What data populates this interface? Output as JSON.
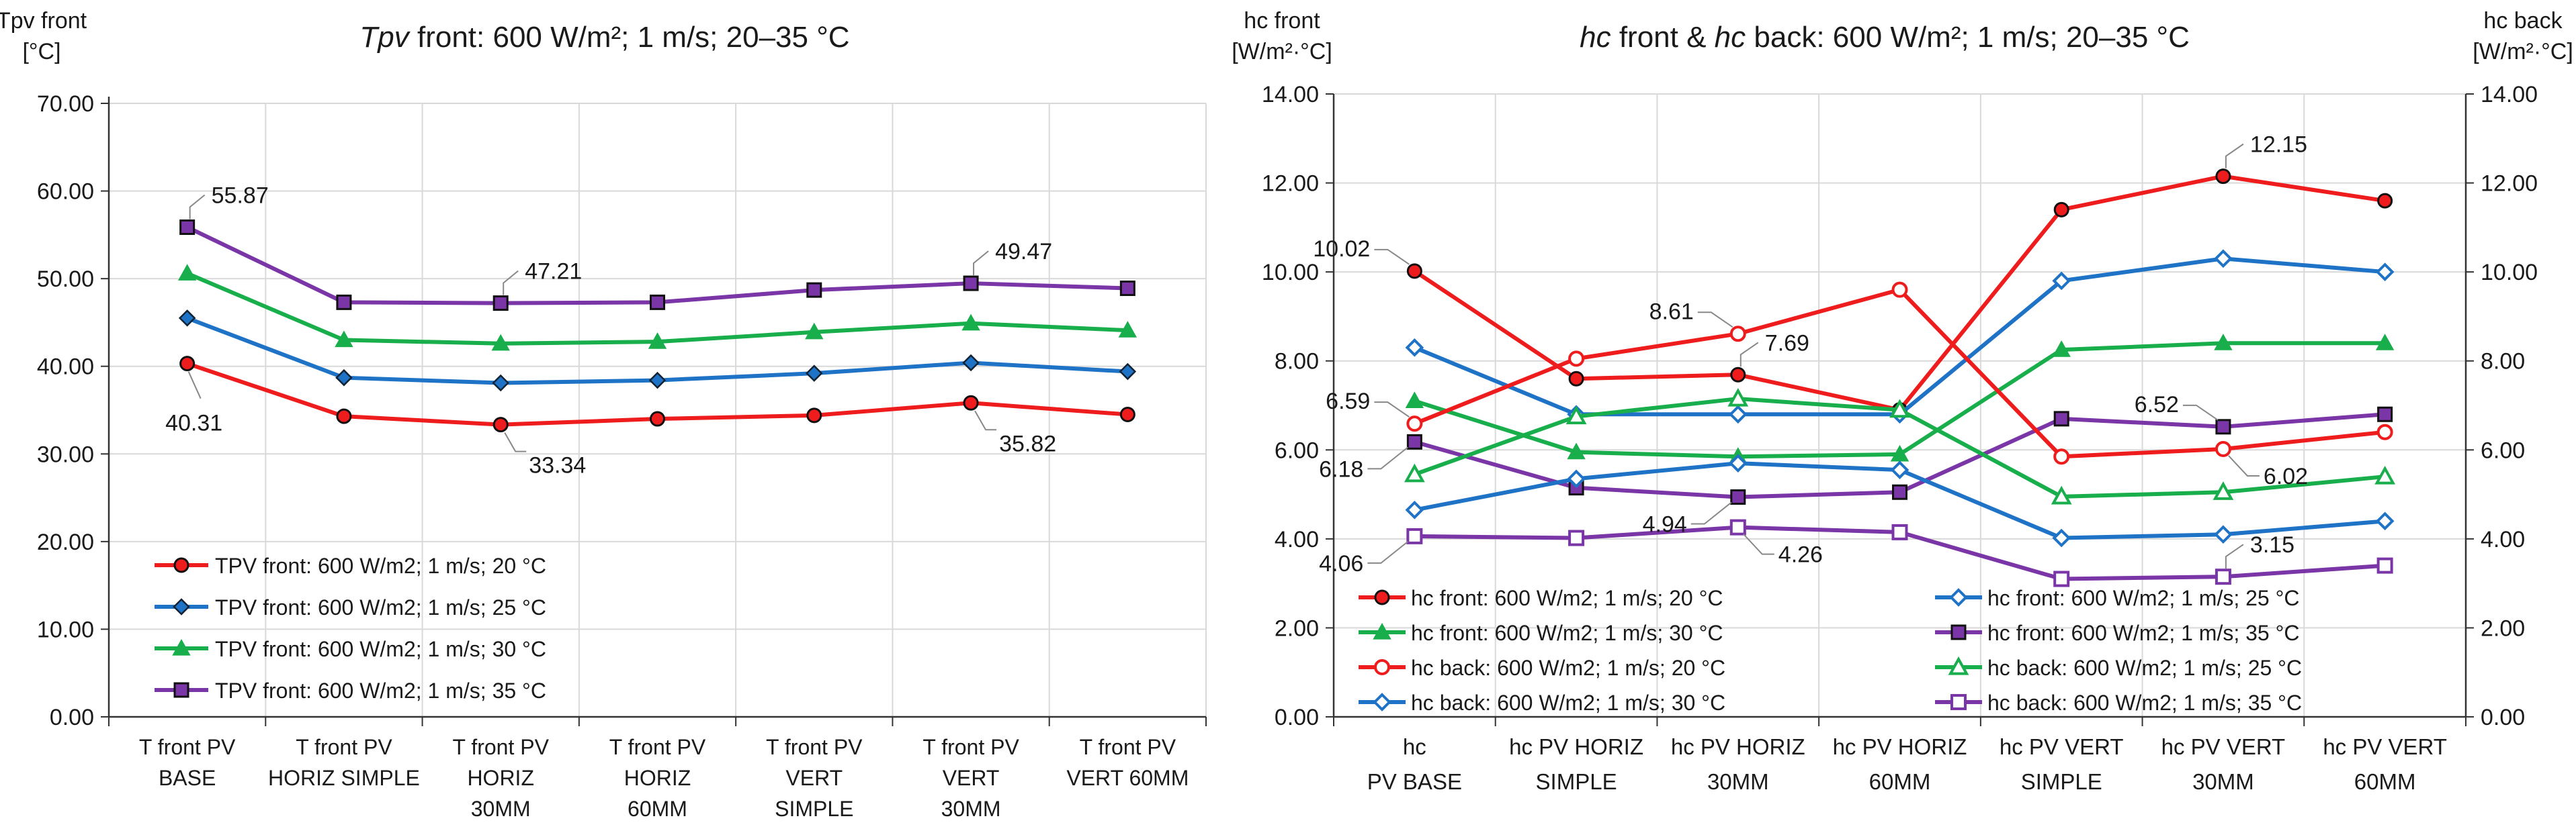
{
  "colors": {
    "red": "#ee1c1c",
    "blue": "#1f73c6",
    "green": "#18ae4b",
    "purple": "#7a35a6"
  },
  "chart_data": [
    {
      "type": "line",
      "title_italic": "Tpv",
      "title_rest": " front: 600 W/m²; 1 m/s; 20–35 °C",
      "ylabel": [
        "Tpv front",
        "[°C]"
      ],
      "ylim": [
        0,
        70
      ],
      "yticks": [
        "0.00",
        "10.00",
        "20.00",
        "30.00",
        "40.00",
        "50.00",
        "60.00",
        "70.00"
      ],
      "grid": true,
      "categories": [
        [
          "T front PV",
          "BASE"
        ],
        [
          "T front PV",
          "HORIZ SIMPLE"
        ],
        [
          "T front PV",
          "HORIZ",
          "30MM"
        ],
        [
          "T front PV",
          "HORIZ",
          "60MM"
        ],
        [
          "T front PV",
          "VERT",
          "SIMPLE"
        ],
        [
          "T front PV",
          "VERT",
          "30MM"
        ],
        [
          "T front PV",
          "VERT        60MM"
        ]
      ],
      "series": [
        {
          "name": "TPV front: 600 W/m2; 1 m/s; 20 °C",
          "color": "#ee1c1c",
          "marker": "circle",
          "values": [
            40.31,
            34.3,
            33.34,
            34.0,
            34.4,
            35.82,
            34.5
          ]
        },
        {
          "name": "TPV front: 600 W/m2; 1 m/s; 25 °C",
          "color": "#1f73c6",
          "marker": "diamond",
          "values": [
            45.5,
            38.7,
            38.1,
            38.4,
            39.2,
            40.4,
            39.4
          ]
        },
        {
          "name": "TPV front: 600 W/m2; 1 m/s; 30 °C",
          "color": "#18ae4b",
          "marker": "triangle",
          "values": [
            50.6,
            43.0,
            42.6,
            42.8,
            43.9,
            44.9,
            44.1
          ]
        },
        {
          "name": "TPV front: 600 W/m2; 1 m/s; 35 °C",
          "color": "#7a35a6",
          "marker": "square",
          "values": [
            55.87,
            47.3,
            47.21,
            47.3,
            48.7,
            49.47,
            48.9
          ]
        }
      ],
      "annotations": [
        {
          "text": "55.87",
          "series": 3,
          "index": 0,
          "side": "up-right"
        },
        {
          "text": "47.21",
          "series": 3,
          "index": 2,
          "side": "up-right"
        },
        {
          "text": "49.47",
          "series": 3,
          "index": 5,
          "side": "up-right"
        },
        {
          "text": "40.31",
          "series": 0,
          "index": 0,
          "side": "down"
        },
        {
          "text": "33.34",
          "series": 0,
          "index": 2,
          "side": "down-right"
        },
        {
          "text": "35.82",
          "series": 0,
          "index": 5,
          "side": "down-right"
        }
      ],
      "legend_position": "bottom-left"
    },
    {
      "type": "line",
      "title_parts": [
        {
          "text": "hc",
          "italic": true
        },
        {
          "text": " front & ",
          "italic": false
        },
        {
          "text": "hc",
          "italic": true
        },
        {
          "text": " back: 600 W/m²; 1 m/s; 20–35 °C",
          "italic": false
        }
      ],
      "ylabel_left": [
        "hc front",
        "[W/m²·°C]"
      ],
      "ylabel_right": [
        "hc back",
        "[W/m²·°C]"
      ],
      "ylim": [
        0,
        14
      ],
      "yticks": [
        "0.00",
        "2.00",
        "4.00",
        "6.00",
        "8.00",
        "10.00",
        "12.00",
        "14.00"
      ],
      "grid": true,
      "categories": [
        [
          "hc",
          "PV BASE"
        ],
        [
          "hc PV HORIZ",
          "SIMPLE"
        ],
        [
          "hc PV HORIZ",
          "30MM"
        ],
        [
          "hc PV HORIZ",
          "60MM"
        ],
        [
          "hc PV VERT",
          "SIMPLE"
        ],
        [
          "hc PV VERT",
          "30MM"
        ],
        [
          "hc PV VERT",
          "60MM"
        ]
      ],
      "series": [
        {
          "name": "hc front: 600 W/m2; 1 m/s; 20 °C",
          "color": "#ee1c1c",
          "marker": "circle",
          "filled": true,
          "values": [
            10.02,
            7.6,
            7.69,
            6.9,
            11.4,
            12.15,
            11.6
          ]
        },
        {
          "name": "hc front: 600 W/m2; 1 m/s; 25 °C",
          "color": "#1f73c6",
          "marker": "diamond",
          "filled": false,
          "values": [
            8.3,
            6.8,
            6.8,
            6.8,
            9.8,
            10.3,
            10.0
          ]
        },
        {
          "name": "hc front: 600 W/m2; 1 m/s; 30 °C",
          "color": "#18ae4b",
          "marker": "triangle",
          "filled": true,
          "values": [
            7.1,
            5.95,
            5.85,
            5.9,
            8.25,
            8.4,
            8.4
          ]
        },
        {
          "name": "hc front: 600 W/m2; 1 m/s; 35 °C",
          "color": "#7a35a6",
          "marker": "square",
          "filled": true,
          "values": [
            6.18,
            5.15,
            4.94,
            5.05,
            6.7,
            6.52,
            6.8
          ]
        },
        {
          "name": "hc back: 600 W/m2; 1 m/s; 20 °C",
          "color": "#ee1c1c",
          "marker": "circle",
          "filled": false,
          "values": [
            6.59,
            8.05,
            8.61,
            9.6,
            5.85,
            6.02,
            6.4
          ]
        },
        {
          "name": "hc back: 600 W/m2; 1 m/s; 25 °C",
          "color": "#18ae4b",
          "marker": "triangle",
          "filled": false,
          "values": [
            5.45,
            6.75,
            7.15,
            6.9,
            4.95,
            5.05,
            5.4
          ]
        },
        {
          "name": "hc back: 600 W/m2; 1 m/s; 30 °C",
          "color": "#1f73c6",
          "marker": "diamond",
          "filled": false,
          "values": [
            4.65,
            5.35,
            5.7,
            5.55,
            4.02,
            4.1,
            4.4
          ]
        },
        {
          "name": "hc back: 600 W/m2; 1 m/s; 35 °C",
          "color": "#7a35a6",
          "marker": "square",
          "filled": false,
          "values": [
            4.06,
            4.02,
            4.26,
            4.15,
            3.1,
            3.15,
            3.4
          ]
        }
      ],
      "legend_order": [
        0,
        1,
        2,
        3,
        4,
        5,
        6,
        7
      ],
      "annotations": [
        {
          "text": "10.02",
          "series": 0,
          "index": 0,
          "side": "up-left"
        },
        {
          "text": "12.15",
          "series": 0,
          "index": 5,
          "side": "up-right"
        },
        {
          "text": "8.61",
          "series": 4,
          "index": 2,
          "side": "up-left"
        },
        {
          "text": "7.69",
          "series": 0,
          "index": 2,
          "side": "up-right"
        },
        {
          "text": "6.59",
          "series": 4,
          "index": 0,
          "side": "up-left"
        },
        {
          "text": "6.18",
          "series": 3,
          "index": 0,
          "side": "down-left"
        },
        {
          "text": "4.94",
          "series": 3,
          "index": 2,
          "side": "down-left"
        },
        {
          "text": "4.26",
          "series": 7,
          "index": 2,
          "side": "down-right"
        },
        {
          "text": "4.06",
          "series": 7,
          "index": 0,
          "side": "down-left"
        },
        {
          "text": "6.52",
          "series": 3,
          "index": 5,
          "side": "up-left"
        },
        {
          "text": "6.02",
          "series": 4,
          "index": 5,
          "side": "down-right"
        },
        {
          "text": "3.15",
          "series": 7,
          "index": 5,
          "side": "up-right"
        }
      ],
      "legend_position": "bottom"
    }
  ]
}
